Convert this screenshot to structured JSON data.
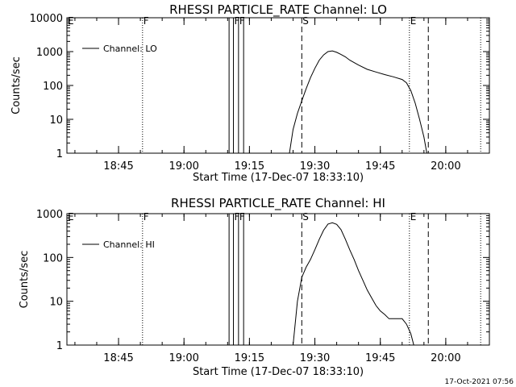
{
  "footer": {
    "timestamp": "17-Oct-2021 07:56"
  },
  "chart_data": [
    {
      "type": "line",
      "title": "RHESSI PARTICLE_RATE Channel: LO",
      "xlabel": "Start Time (17-Dec-07 18:33:10)",
      "ylabel": "Counts/sec",
      "y_scale": "log",
      "ylim": [
        1,
        10000
      ],
      "y_ticks": [
        1,
        10,
        100,
        1000,
        10000
      ],
      "y_tick_labels": [
        "1",
        "10",
        "100",
        "1000",
        "10000"
      ],
      "xlim": [
        "18:33:10",
        "20:10:00"
      ],
      "x_ticks": [
        "18:45",
        "19:00",
        "19:15",
        "19:30",
        "19:45",
        "20:00"
      ],
      "grid": false,
      "legend": {
        "position": "top-left",
        "entries": [
          "Channel: LO"
        ]
      },
      "markers": [
        {
          "time": "18:33:10",
          "label": "E",
          "style": "dotted"
        },
        {
          "time": "18:50:30",
          "label": "F",
          "style": "dotted"
        },
        {
          "time": "19:10:20",
          "label": "",
          "style": "solid"
        },
        {
          "time": "19:11:20",
          "label": "F",
          "style": "solid"
        },
        {
          "time": "19:12:30",
          "label": "F",
          "style": "solid"
        },
        {
          "time": "19:13:40",
          "label": "",
          "style": "solid"
        },
        {
          "time": "19:27:00",
          "label": "S",
          "style": "dashed"
        },
        {
          "time": "19:51:40",
          "label": "E",
          "style": "dotted"
        },
        {
          "time": "19:56:00",
          "label": "",
          "style": "dashed"
        },
        {
          "time": "20:08:00",
          "label": "",
          "style": "dotted"
        }
      ],
      "series": [
        {
          "name": "Channel: LO",
          "x": [
            "19:24:10",
            "19:25:00",
            "19:26:00",
            "19:27:00",
            "19:28:00",
            "19:29:00",
            "19:30:00",
            "19:31:00",
            "19:32:00",
            "19:33:00",
            "19:34:00",
            "19:35:00",
            "19:36:00",
            "19:37:00",
            "19:38:00",
            "19:40:00",
            "19:42:00",
            "19:44:00",
            "19:46:00",
            "19:48:00",
            "19:50:00",
            "19:51:00",
            "19:52:00",
            "19:53:00",
            "19:54:00",
            "19:55:00",
            "19:55:40"
          ],
          "y": [
            1,
            5,
            15,
            35,
            80,
            170,
            320,
            560,
            800,
            1000,
            1050,
            950,
            820,
            700,
            560,
            400,
            300,
            250,
            210,
            180,
            150,
            120,
            70,
            30,
            10,
            3,
            1
          ]
        }
      ]
    },
    {
      "type": "line",
      "title": "RHESSI PARTICLE_RATE Channel: HI",
      "xlabel": "Start Time (17-Dec-07 18:33:10)",
      "ylabel": "Counts/sec",
      "y_scale": "log",
      "ylim": [
        1,
        1000
      ],
      "y_ticks": [
        1,
        10,
        100,
        1000
      ],
      "y_tick_labels": [
        "1",
        "10",
        "100",
        "1000"
      ],
      "xlim": [
        "18:33:10",
        "20:10:00"
      ],
      "x_ticks": [
        "18:45",
        "19:00",
        "19:15",
        "19:30",
        "19:45",
        "20:00"
      ],
      "grid": false,
      "legend": {
        "position": "top-left",
        "entries": [
          "Channel: HI"
        ]
      },
      "markers": [
        {
          "time": "18:33:10",
          "label": "E",
          "style": "dotted"
        },
        {
          "time": "18:50:30",
          "label": "F",
          "style": "dotted"
        },
        {
          "time": "19:10:20",
          "label": "",
          "style": "solid"
        },
        {
          "time": "19:11:20",
          "label": "F",
          "style": "solid"
        },
        {
          "time": "19:12:30",
          "label": "F",
          "style": "solid"
        },
        {
          "time": "19:13:40",
          "label": "",
          "style": "solid"
        },
        {
          "time": "19:27:00",
          "label": "S",
          "style": "dashed"
        },
        {
          "time": "19:51:40",
          "label": "E",
          "style": "dotted"
        },
        {
          "time": "19:56:00",
          "label": "",
          "style": "dashed"
        },
        {
          "time": "20:08:00",
          "label": "",
          "style": "dotted"
        }
      ],
      "series": [
        {
          "name": "Channel: HI",
          "x": [
            "19:25:00",
            "19:26:00",
            "19:27:00",
            "19:28:00",
            "19:29:00",
            "19:30:00",
            "19:31:00",
            "19:32:00",
            "19:33:00",
            "19:34:00",
            "19:35:00",
            "19:36:00",
            "19:37:00",
            "19:38:00",
            "19:39:00",
            "19:40:00",
            "19:41:00",
            "19:42:00",
            "19:43:00",
            "19:44:00",
            "19:45:00",
            "19:46:00",
            "19:47:00",
            "19:48:00",
            "19:49:00",
            "19:50:00",
            "19:51:00",
            "19:52:00",
            "19:52:40"
          ],
          "y": [
            1,
            10,
            35,
            60,
            90,
            150,
            260,
            420,
            580,
            620,
            570,
            430,
            260,
            150,
            90,
            50,
            30,
            18,
            12,
            8,
            6,
            5,
            4,
            4,
            4,
            4,
            3,
            1.8,
            1
          ]
        }
      ]
    }
  ]
}
